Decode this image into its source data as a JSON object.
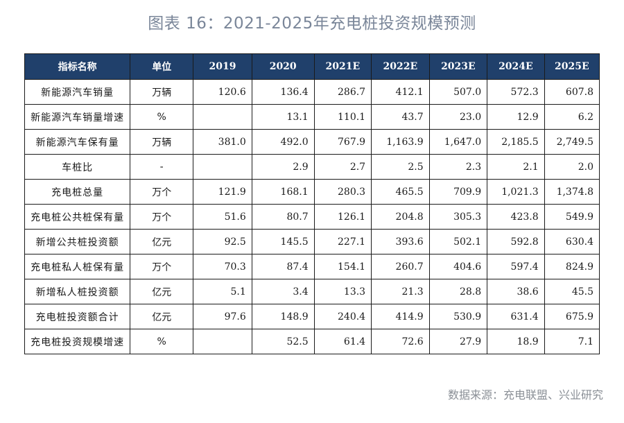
{
  "title": "图表 16：2021-2025年充电桩投资规模预测",
  "table": {
    "headers": [
      "指标名称",
      "单位",
      "2019",
      "2020",
      "2021E",
      "2022E",
      "2023E",
      "2024E",
      "2025E"
    ],
    "rows": [
      [
        "新能源汽车销量",
        "万辆",
        "120.6",
        "136.4",
        "286.7",
        "412.1",
        "507.0",
        "572.3",
        "607.8"
      ],
      [
        "新能源汽车销量增速",
        "%",
        "",
        "13.1",
        "110.1",
        "43.7",
        "23.0",
        "12.9",
        "6.2"
      ],
      [
        "新能源汽车保有量",
        "万辆",
        "381.0",
        "492.0",
        "767.9",
        "1,163.9",
        "1,647.0",
        "2,185.5",
        "2,749.5"
      ],
      [
        "车桩比",
        "-",
        "",
        "2.9",
        "2.7",
        "2.5",
        "2.3",
        "2.1",
        "2.0"
      ],
      [
        "充电桩总量",
        "万个",
        "121.9",
        "168.1",
        "280.3",
        "465.5",
        "709.9",
        "1,021.3",
        "1,374.8"
      ],
      [
        "充电桩公共桩保有量",
        "万个",
        "51.6",
        "80.7",
        "126.1",
        "204.8",
        "305.3",
        "423.8",
        "549.9"
      ],
      [
        "新增公共桩投资额",
        "亿元",
        "92.5",
        "145.5",
        "227.1",
        "393.6",
        "502.1",
        "592.8",
        "630.4"
      ],
      [
        "充电桩私人桩保有量",
        "万个",
        "70.3",
        "87.4",
        "154.1",
        "260.7",
        "404.6",
        "597.4",
        "824.9"
      ],
      [
        "新增私人桩投资额",
        "亿元",
        "5.1",
        "3.4",
        "13.3",
        "21.3",
        "28.8",
        "38.6",
        "45.5"
      ],
      [
        "充电桩投资额合计",
        "亿元",
        "97.6",
        "148.9",
        "240.4",
        "414.9",
        "530.9",
        "631.4",
        "675.9"
      ],
      [
        "充电桩投资规模增速",
        "%",
        "",
        "52.5",
        "61.4",
        "72.6",
        "27.9",
        "18.9",
        "7.1"
      ]
    ]
  },
  "source": "数据来源：充电联盟、兴业研究",
  "colors": {
    "header_bg": "#20406b",
    "header_text": "#ffffff",
    "title_text": "#7a8699",
    "source_text": "#8a8f96"
  }
}
